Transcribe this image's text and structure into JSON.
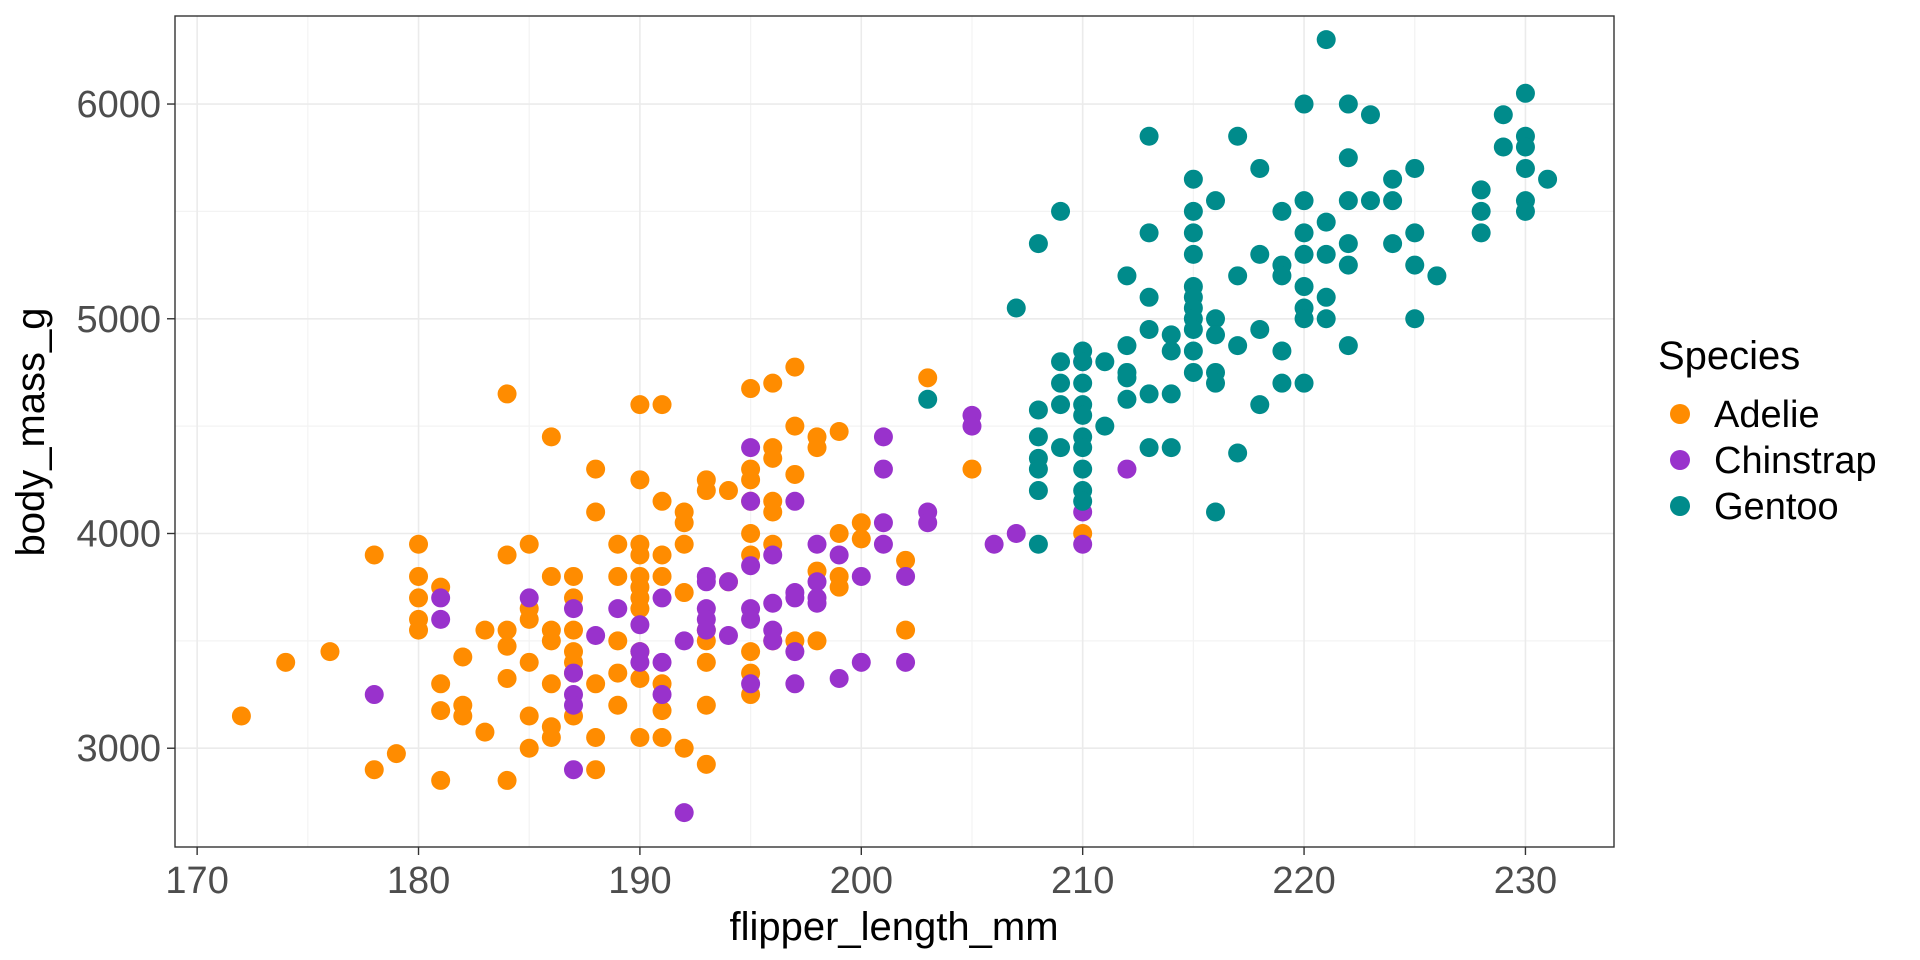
{
  "chart_data": {
    "type": "scatter",
    "title": "",
    "xlabel": "flipper_length_mm",
    "ylabel": "body_mass_g",
    "xlim": [
      169,
      234
    ],
    "ylim": [
      2540,
      6410
    ],
    "xticks": [
      170,
      180,
      190,
      200,
      210,
      220,
      230
    ],
    "yticks": [
      3000,
      4000,
      5000,
      6000
    ],
    "grid": true,
    "legend": {
      "title": "Species",
      "position": "right"
    },
    "series": [
      {
        "name": "Adelie",
        "color": "#FF8C00",
        "points": [
          [
            172,
            3150
          ],
          [
            174,
            3400
          ],
          [
            176,
            3450
          ],
          [
            178,
            3900
          ],
          [
            178,
            2900
          ],
          [
            179,
            2975
          ],
          [
            180,
            3950
          ],
          [
            180,
            3800
          ],
          [
            180,
            3700
          ],
          [
            180,
            3600
          ],
          [
            180,
            3550
          ],
          [
            181,
            3750
          ],
          [
            181,
            3300
          ],
          [
            181,
            3175
          ],
          [
            181,
            2850
          ],
          [
            182,
            3425
          ],
          [
            182,
            3200
          ],
          [
            182,
            3150
          ],
          [
            183,
            3550
          ],
          [
            183,
            3075
          ],
          [
            184,
            4650
          ],
          [
            184,
            3900
          ],
          [
            184,
            3550
          ],
          [
            184,
            3475
          ],
          [
            184,
            3325
          ],
          [
            184,
            2850
          ],
          [
            185,
            3950
          ],
          [
            185,
            3650
          ],
          [
            185,
            3600
          ],
          [
            185,
            3400
          ],
          [
            185,
            3150
          ],
          [
            185,
            3000
          ],
          [
            186,
            4450
          ],
          [
            186,
            3800
          ],
          [
            186,
            3550
          ],
          [
            186,
            3500
          ],
          [
            186,
            3300
          ],
          [
            186,
            3100
          ],
          [
            186,
            3050
          ],
          [
            187,
            3800
          ],
          [
            187,
            3700
          ],
          [
            187,
            3550
          ],
          [
            187,
            3450
          ],
          [
            187,
            3400
          ],
          [
            187,
            3350
          ],
          [
            187,
            3150
          ],
          [
            188,
            4300
          ],
          [
            188,
            4100
          ],
          [
            188,
            3300
          ],
          [
            188,
            3050
          ],
          [
            188,
            2900
          ],
          [
            189,
            3950
          ],
          [
            189,
            3800
          ],
          [
            189,
            3500
          ],
          [
            189,
            3350
          ],
          [
            189,
            3200
          ],
          [
            190,
            4600
          ],
          [
            190,
            4250
          ],
          [
            190,
            3950
          ],
          [
            190,
            3900
          ],
          [
            190,
            3800
          ],
          [
            190,
            3750
          ],
          [
            190,
            3700
          ],
          [
            190,
            3650
          ],
          [
            190,
            3450
          ],
          [
            190,
            3325
          ],
          [
            190,
            3050
          ],
          [
            191,
            4600
          ],
          [
            191,
            4150
          ],
          [
            191,
            3900
          ],
          [
            191,
            3800
          ],
          [
            191,
            3300
          ],
          [
            191,
            3175
          ],
          [
            191,
            3050
          ],
          [
            192,
            4100
          ],
          [
            192,
            4050
          ],
          [
            192,
            3950
          ],
          [
            192,
            3725
          ],
          [
            192,
            3000
          ],
          [
            193,
            4250
          ],
          [
            193,
            4200
          ],
          [
            193,
            3550
          ],
          [
            193,
            3500
          ],
          [
            193,
            3400
          ],
          [
            193,
            3200
          ],
          [
            193,
            2925
          ],
          [
            194,
            4200
          ],
          [
            194,
            3775
          ],
          [
            195,
            4675
          ],
          [
            195,
            4300
          ],
          [
            195,
            4250
          ],
          [
            195,
            4150
          ],
          [
            195,
            4000
          ],
          [
            195,
            3900
          ],
          [
            195,
            3450
          ],
          [
            195,
            3350
          ],
          [
            195,
            3250
          ],
          [
            196,
            4700
          ],
          [
            196,
            4400
          ],
          [
            196,
            4350
          ],
          [
            196,
            4150
          ],
          [
            196,
            4100
          ],
          [
            196,
            3950
          ],
          [
            196,
            3500
          ],
          [
            197,
            4775
          ],
          [
            197,
            4500
          ],
          [
            197,
            4275
          ],
          [
            197,
            3500
          ],
          [
            198,
            4450
          ],
          [
            198,
            4400
          ],
          [
            198,
            3825
          ],
          [
            198,
            3500
          ],
          [
            199,
            4475
          ],
          [
            199,
            4000
          ],
          [
            199,
            3800
          ],
          [
            199,
            3750
          ],
          [
            200,
            4050
          ],
          [
            200,
            3975
          ],
          [
            202,
            3875
          ],
          [
            202,
            3550
          ],
          [
            203,
            4725
          ],
          [
            205,
            4300
          ],
          [
            210,
            4000
          ]
        ]
      },
      {
        "name": "Chinstrap",
        "color": "#9932CC",
        "points": [
          [
            178,
            3250
          ],
          [
            181,
            3700
          ],
          [
            181,
            3600
          ],
          [
            185,
            3700
          ],
          [
            187,
            3650
          ],
          [
            187,
            3350
          ],
          [
            187,
            3250
          ],
          [
            187,
            3200
          ],
          [
            187,
            2900
          ],
          [
            188,
            3525
          ],
          [
            189,
            3650
          ],
          [
            190,
            3575
          ],
          [
            190,
            3450
          ],
          [
            190,
            3400
          ],
          [
            191,
            3700
          ],
          [
            191,
            3400
          ],
          [
            191,
            3250
          ],
          [
            192,
            3500
          ],
          [
            192,
            2700
          ],
          [
            193,
            3800
          ],
          [
            193,
            3775
          ],
          [
            193,
            3650
          ],
          [
            193,
            3600
          ],
          [
            193,
            3550
          ],
          [
            194,
            3525
          ],
          [
            194,
            3775
          ],
          [
            195,
            4400
          ],
          [
            195,
            4150
          ],
          [
            195,
            3850
          ],
          [
            195,
            3650
          ],
          [
            195,
            3600
          ],
          [
            195,
            3300
          ],
          [
            196,
            3900
          ],
          [
            196,
            3675
          ],
          [
            196,
            3550
          ],
          [
            196,
            3500
          ],
          [
            197,
            4150
          ],
          [
            197,
            3725
          ],
          [
            197,
            3450
          ],
          [
            197,
            3300
          ],
          [
            197,
            3700
          ],
          [
            198,
            3950
          ],
          [
            198,
            3775
          ],
          [
            198,
            3700
          ],
          [
            198,
            3675
          ],
          [
            199,
            3900
          ],
          [
            199,
            3325
          ],
          [
            200,
            3800
          ],
          [
            200,
            3400
          ],
          [
            201,
            4450
          ],
          [
            201,
            4300
          ],
          [
            201,
            4050
          ],
          [
            201,
            3950
          ],
          [
            202,
            3800
          ],
          [
            202,
            3400
          ],
          [
            203,
            4100
          ],
          [
            203,
            4050
          ],
          [
            205,
            4550
          ],
          [
            205,
            4500
          ],
          [
            206,
            3950
          ],
          [
            207,
            4000
          ],
          [
            210,
            4800
          ],
          [
            210,
            4100
          ],
          [
            210,
            3950
          ],
          [
            212,
            4300
          ]
        ]
      },
      {
        "name": "Gentoo",
        "color": "#008B8B",
        "points": [
          [
            203,
            4625
          ],
          [
            207,
            5050
          ],
          [
            208,
            5350
          ],
          [
            208,
            4575
          ],
          [
            208,
            4450
          ],
          [
            208,
            4350
          ],
          [
            208,
            4300
          ],
          [
            208,
            4200
          ],
          [
            208,
            3950
          ],
          [
            209,
            5500
          ],
          [
            209,
            4800
          ],
          [
            209,
            4700
          ],
          [
            209,
            4600
          ],
          [
            209,
            4400
          ],
          [
            210,
            4850
          ],
          [
            210,
            4800
          ],
          [
            210,
            4700
          ],
          [
            210,
            4600
          ],
          [
            210,
            4550
          ],
          [
            210,
            4450
          ],
          [
            210,
            4400
          ],
          [
            210,
            4300
          ],
          [
            210,
            4200
          ],
          [
            210,
            4150
          ],
          [
            211,
            4800
          ],
          [
            211,
            4500
          ],
          [
            212,
            5200
          ],
          [
            212,
            4875
          ],
          [
            212,
            4750
          ],
          [
            212,
            4725
          ],
          [
            212,
            4625
          ],
          [
            213,
            5850
          ],
          [
            213,
            5400
          ],
          [
            213,
            5100
          ],
          [
            213,
            4950
          ],
          [
            213,
            4650
          ],
          [
            213,
            4400
          ],
          [
            214,
            4925
          ],
          [
            214,
            4850
          ],
          [
            214,
            4650
          ],
          [
            214,
            4400
          ],
          [
            215,
            5650
          ],
          [
            215,
            5500
          ],
          [
            215,
            5400
          ],
          [
            215,
            5300
          ],
          [
            215,
            5150
          ],
          [
            215,
            5100
          ],
          [
            215,
            5050
          ],
          [
            215,
            5000
          ],
          [
            215,
            4950
          ],
          [
            215,
            4850
          ],
          [
            215,
            4750
          ],
          [
            216,
            5550
          ],
          [
            216,
            5000
          ],
          [
            216,
            4925
          ],
          [
            216,
            4750
          ],
          [
            216,
            4700
          ],
          [
            216,
            4100
          ],
          [
            217,
            5850
          ],
          [
            217,
            5200
          ],
          [
            217,
            4875
          ],
          [
            217,
            4375
          ],
          [
            218,
            5700
          ],
          [
            218,
            5300
          ],
          [
            218,
            4950
          ],
          [
            218,
            4600
          ],
          [
            219,
            5500
          ],
          [
            219,
            5250
          ],
          [
            219,
            5200
          ],
          [
            219,
            4850
          ],
          [
            219,
            4700
          ],
          [
            220,
            6000
          ],
          [
            220,
            5550
          ],
          [
            220,
            5400
          ],
          [
            220,
            5300
          ],
          [
            220,
            5150
          ],
          [
            220,
            5050
          ],
          [
            220,
            5000
          ],
          [
            220,
            4700
          ],
          [
            221,
            6300
          ],
          [
            221,
            5450
          ],
          [
            221,
            5300
          ],
          [
            221,
            5100
          ],
          [
            221,
            5000
          ],
          [
            222,
            6000
          ],
          [
            222,
            5750
          ],
          [
            222,
            5550
          ],
          [
            222,
            5350
          ],
          [
            222,
            5250
          ],
          [
            222,
            4875
          ],
          [
            223,
            5950
          ],
          [
            223,
            5550
          ],
          [
            224,
            5650
          ],
          [
            224,
            5550
          ],
          [
            224,
            5350
          ],
          [
            225,
            5700
          ],
          [
            225,
            5400
          ],
          [
            225,
            5250
          ],
          [
            225,
            5000
          ],
          [
            226,
            5200
          ],
          [
            228,
            5600
          ],
          [
            228,
            5500
          ],
          [
            228,
            5400
          ],
          [
            229,
            5950
          ],
          [
            229,
            5800
          ],
          [
            230,
            6050
          ],
          [
            230,
            5850
          ],
          [
            230,
            5800
          ],
          [
            230,
            5700
          ],
          [
            230,
            5550
          ],
          [
            230,
            5500
          ],
          [
            231,
            5650
          ]
        ]
      }
    ]
  }
}
